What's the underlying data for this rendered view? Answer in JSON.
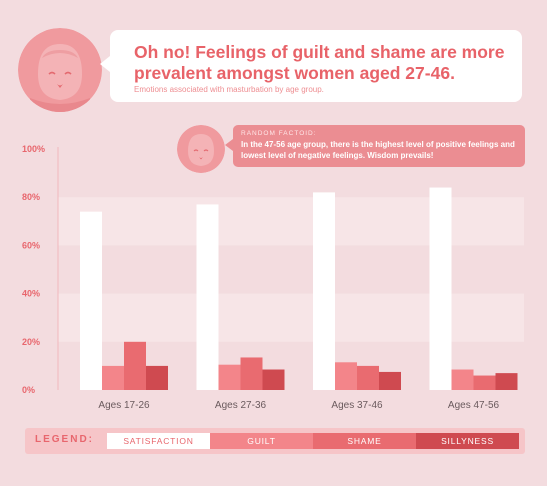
{
  "header": {
    "headline": "Oh no! Feelings of guilt and shame are more prevalent amongst women aged 27-46.",
    "subtitle": "Emotions associated with masturbation by age group."
  },
  "factoid": {
    "label": "RANDOM FACTOID:",
    "text": "In the 47-56 age group, there is the highest level of positive feelings and lowest level of negative feelings. Wisdom prevails!"
  },
  "legend": {
    "title": "LEGEND:"
  },
  "colors": {
    "satisfaction": "#ffffff",
    "guilt": "#f3858a",
    "shame": "#e96b70",
    "sillyness": "#cf4a50",
    "axis_label": "#e8666d",
    "band": "#f7e5e7"
  },
  "chart_data": {
    "type": "bar",
    "categories": [
      "Ages 17-26",
      "Ages 27-36",
      "Ages 37-46",
      "Ages 47-56"
    ],
    "series": [
      {
        "name": "SATISFACTION",
        "values": [
          74,
          77,
          82,
          84
        ]
      },
      {
        "name": "GUILT",
        "values": [
          10,
          10.5,
          11.5,
          8.5
        ]
      },
      {
        "name": "SHAME",
        "values": [
          20,
          13.5,
          10,
          6
        ]
      },
      {
        "name": "SILLYNESS",
        "values": [
          10,
          8.5,
          7.5,
          7
        ]
      }
    ],
    "yticks": [
      "0%",
      "20%",
      "40%",
      "60%",
      "80%",
      "100%"
    ],
    "ylim": [
      0,
      100
    ],
    "legend_position": "bottom"
  }
}
